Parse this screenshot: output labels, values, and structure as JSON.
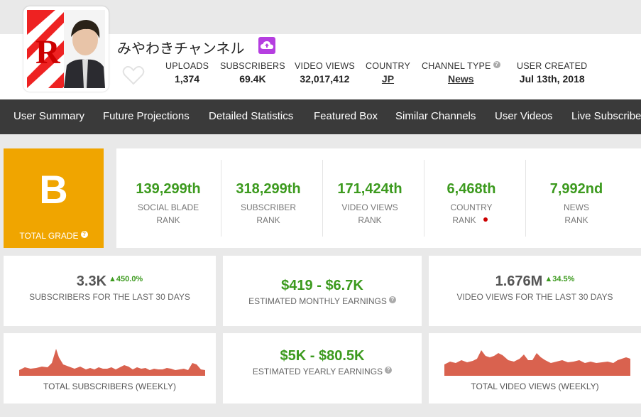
{
  "channel": {
    "name": "みやわきチャンネル",
    "avatar_letter": "R"
  },
  "header_stats": [
    {
      "label": "UPLOADS",
      "value": "1,374"
    },
    {
      "label": "SUBSCRIBERS",
      "value": "69.4K"
    },
    {
      "label": "VIDEO VIEWS",
      "value": "32,017,412"
    },
    {
      "label": "COUNTRY",
      "value": "JP"
    },
    {
      "label": "CHANNEL TYPE",
      "value": "News"
    },
    {
      "label": "USER CREATED",
      "value": "Jul 13th, 2018"
    }
  ],
  "nav": [
    "User Summary",
    "Future Projections",
    "Detailed Statistics",
    "Featured Box",
    "Similar Channels",
    "User Videos",
    "Live Subscriber"
  ],
  "grade": {
    "letter": "B",
    "label": "TOTAL GRADE"
  },
  "ranks": [
    {
      "value": "139,299th",
      "line1": "SOCIAL BLADE",
      "line2": "RANK"
    },
    {
      "value": "318,299th",
      "line1": "SUBSCRIBER",
      "line2": "RANK"
    },
    {
      "value": "171,424th",
      "line1": "VIDEO VIEWS",
      "line2": "RANK"
    },
    {
      "value": "6,468th",
      "line1": "COUNTRY",
      "line2": "RANK"
    },
    {
      "value": "7,992nd",
      "line1": "NEWS",
      "line2": "RANK"
    }
  ],
  "cards": {
    "subs30": {
      "value": "3.3K",
      "delta": "450.0%",
      "label": "SUBSCRIBERS FOR THE LAST 30 DAYS"
    },
    "monthly": {
      "value": "$419 - $6.7K",
      "label": "ESTIMATED MONTHLY EARNINGS"
    },
    "views30": {
      "value": "1.676M",
      "delta": "34.5%",
      "label": "VIDEO VIEWS FOR THE LAST 30 DAYS"
    },
    "yearly": {
      "value": "$5K - $80.5K",
      "label": "ESTIMATED YEARLY EARNINGS"
    }
  },
  "sparklines": {
    "subs_label": "TOTAL SUBSCRIBERS (WEEKLY)",
    "views_label": "TOTAL VIDEO VIEWS (WEEKLY)",
    "color": "#d9624f"
  },
  "colors": {
    "accent_green": "#3c9a1e",
    "grade_bg": "#f0a500",
    "nav_bg": "#3a3a3a",
    "badge": "#b53ee0",
    "country_dot": "#cc0000"
  }
}
